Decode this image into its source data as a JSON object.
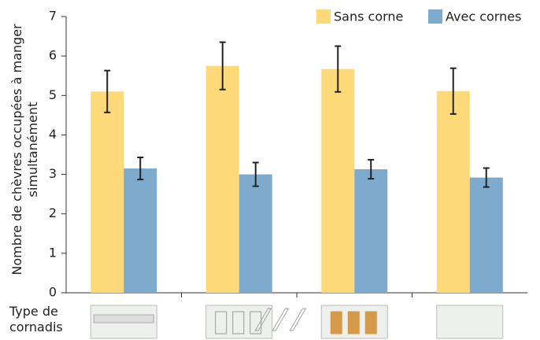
{
  "chart_data": {
    "type": "bar",
    "xlabel": "Type de cornadis",
    "ylabel": "Nombre de chèvres occupées à manger simultanément",
    "categories": [
      null,
      null,
      null,
      null
    ],
    "series": [
      {
        "name": "Sans corne",
        "color": "#fdd97a",
        "values": [
          5.1,
          5.75,
          5.67,
          5.11
        ],
        "errors": [
          0.53,
          0.6,
          0.58,
          0.58
        ]
      },
      {
        "name": "Avec cornes",
        "color": "#7eaacd",
        "values": [
          3.15,
          3.0,
          3.13,
          2.92
        ],
        "errors": [
          0.28,
          0.3,
          0.24,
          0.24
        ]
      }
    ],
    "ylim": [
      0,
      7
    ],
    "yticks": [
      0,
      1,
      2,
      3,
      4,
      5,
      6,
      7
    ],
    "legend": "top-right"
  }
}
